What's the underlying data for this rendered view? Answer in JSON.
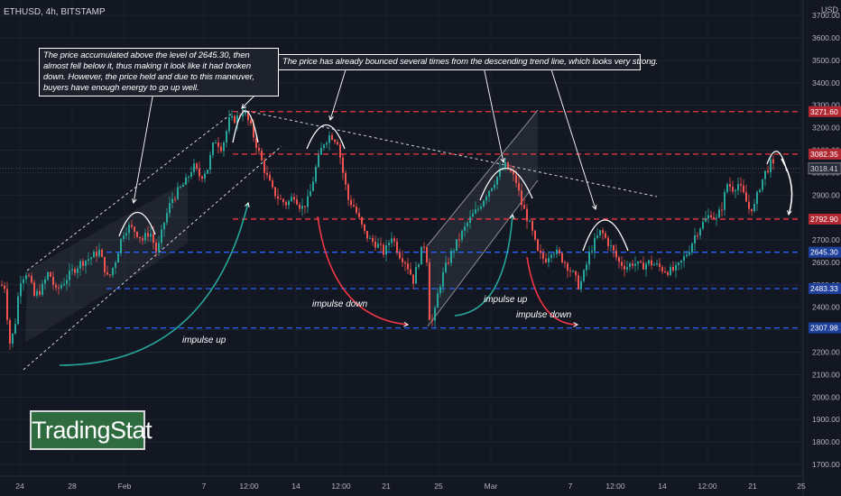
{
  "header": {
    "symbol": "ETHUSD, 4h, BITSTAMP",
    "currency": "USD",
    "currency_prefix": "3"
  },
  "annotations": {
    "note1": "The price accumulated above the level of 2645.30, then almost fell below it, thus making it look like it had broken down. However, the price held and due to this maneuver, buyers have enough energy to go up well.",
    "note2": "The price has already bounced several times from the descending trend line, which looks very strong.",
    "impulse_up_1": "impulse up",
    "impulse_down_1": "impulse down",
    "impulse_up_2": "impulse up",
    "impulse_down_2": "impulse down"
  },
  "logo": "TradingStat",
  "colors": {
    "background": "#131722",
    "bull": "#26a69a",
    "bear": "#ef5350",
    "resistance": "#f23645",
    "support": "#2962ff",
    "arrow_up": "#26a69a",
    "arrow_down": "#f23645"
  },
  "chart_data": {
    "type": "candlestick",
    "ylim": [
      1650,
      3760
    ],
    "yticks": [
      1700,
      1800,
      1900,
      2000,
      2100,
      2200,
      2300,
      2400,
      2500,
      2600,
      2700,
      2800,
      2900,
      3000,
      3100,
      3200,
      3300,
      3400,
      3500,
      3600,
      3700
    ],
    "xticks": [
      "24",
      "28",
      "Feb",
      "7",
      "12:00",
      "14",
      "12:00",
      "21",
      "25",
      "Mar",
      "7",
      "12:00",
      "14",
      "12:00",
      "21",
      "25"
    ],
    "last_price": "3018.41",
    "levels": [
      {
        "value": 3271.6,
        "label": "3271.60",
        "kind": "resistance"
      },
      {
        "value": 3082.35,
        "label": "3082.35",
        "kind": "resistance"
      },
      {
        "value": 2792.9,
        "label": "2792.90",
        "kind": "resistance"
      },
      {
        "value": 2645.3,
        "label": "2645.30",
        "kind": "support"
      },
      {
        "value": 2483.33,
        "label": "2483.33",
        "kind": "support"
      },
      {
        "value": 2307.98,
        "label": "2307.98",
        "kind": "support"
      }
    ],
    "price_path": [
      [
        0,
        2500
      ],
      [
        6,
        2490
      ],
      [
        10,
        2230
      ],
      [
        16,
        2300
      ],
      [
        22,
        2520
      ],
      [
        30,
        2560
      ],
      [
        38,
        2450
      ],
      [
        46,
        2480
      ],
      [
        54,
        2560
      ],
      [
        62,
        2470
      ],
      [
        70,
        2510
      ],
      [
        80,
        2560
      ],
      [
        90,
        2600
      ],
      [
        100,
        2620
      ],
      [
        110,
        2650
      ],
      [
        120,
        2520
      ],
      [
        128,
        2610
      ],
      [
        136,
        2730
      ],
      [
        142,
        2760
      ],
      [
        150,
        2740
      ],
      [
        158,
        2700
      ],
      [
        166,
        2740
      ],
      [
        174,
        2640
      ],
      [
        182,
        2780
      ],
      [
        190,
        2880
      ],
      [
        198,
        2920
      ],
      [
        206,
        2960
      ],
      [
        214,
        3030
      ],
      [
        222,
        2980
      ],
      [
        230,
        3020
      ],
      [
        238,
        3150
      ],
      [
        246,
        3110
      ],
      [
        254,
        3230
      ],
      [
        262,
        3240
      ],
      [
        270,
        3280
      ],
      [
        278,
        3200
      ],
      [
        286,
        3100
      ],
      [
        294,
        3000
      ],
      [
        302,
        2920
      ],
      [
        310,
        2880
      ],
      [
        318,
        2860
      ],
      [
        326,
        2900
      ],
      [
        334,
        2840
      ],
      [
        342,
        2880
      ],
      [
        350,
        3020
      ],
      [
        358,
        3130
      ],
      [
        366,
        3170
      ],
      [
        374,
        3140
      ],
      [
        380,
        3000
      ],
      [
        386,
        2880
      ],
      [
        392,
        2850
      ],
      [
        398,
        2790
      ],
      [
        404,
        2730
      ],
      [
        410,
        2700
      ],
      [
        418,
        2680
      ],
      [
        426,
        2640
      ],
      [
        434,
        2720
      ],
      [
        442,
        2640
      ],
      [
        450,
        2600
      ],
      [
        458,
        2520
      ],
      [
        466,
        2640
      ],
      [
        472,
        2700
      ],
      [
        476,
        2360
      ],
      [
        480,
        2330
      ],
      [
        486,
        2480
      ],
      [
        492,
        2560
      ],
      [
        500,
        2640
      ],
      [
        508,
        2700
      ],
      [
        516,
        2760
      ],
      [
        522,
        2800
      ],
      [
        530,
        2840
      ],
      [
        538,
        2900
      ],
      [
        546,
        2950
      ],
      [
        554,
        3000
      ],
      [
        560,
        3030
      ],
      [
        566,
        3000
      ],
      [
        572,
        2960
      ],
      [
        578,
        2860
      ],
      [
        584,
        2800
      ],
      [
        590,
        2730
      ],
      [
        596,
        2640
      ],
      [
        604,
        2610
      ],
      [
        612,
        2660
      ],
      [
        620,
        2630
      ],
      [
        628,
        2590
      ],
      [
        636,
        2540
      ],
      [
        642,
        2490
      ],
      [
        648,
        2560
      ],
      [
        654,
        2650
      ],
      [
        660,
        2700
      ],
      [
        666,
        2740
      ],
      [
        672,
        2700
      ],
      [
        678,
        2660
      ],
      [
        686,
        2600
      ],
      [
        694,
        2580
      ],
      [
        702,
        2600
      ],
      [
        710,
        2580
      ],
      [
        718,
        2600
      ],
      [
        726,
        2590
      ],
      [
        734,
        2570
      ],
      [
        742,
        2560
      ],
      [
        750,
        2570
      ],
      [
        758,
        2620
      ],
      [
        764,
        2660
      ],
      [
        770,
        2720
      ],
      [
        776,
        2760
      ],
      [
        782,
        2790
      ],
      [
        788,
        2820
      ],
      [
        794,
        2790
      ],
      [
        800,
        2850
      ],
      [
        806,
        2950
      ],
      [
        812,
        2930
      ],
      [
        818,
        2950
      ],
      [
        824,
        2900
      ],
      [
        830,
        2840
      ],
      [
        836,
        2850
      ],
      [
        842,
        2940
      ],
      [
        848,
        3000
      ],
      [
        854,
        3040
      ],
      [
        858,
        3020
      ]
    ]
  }
}
